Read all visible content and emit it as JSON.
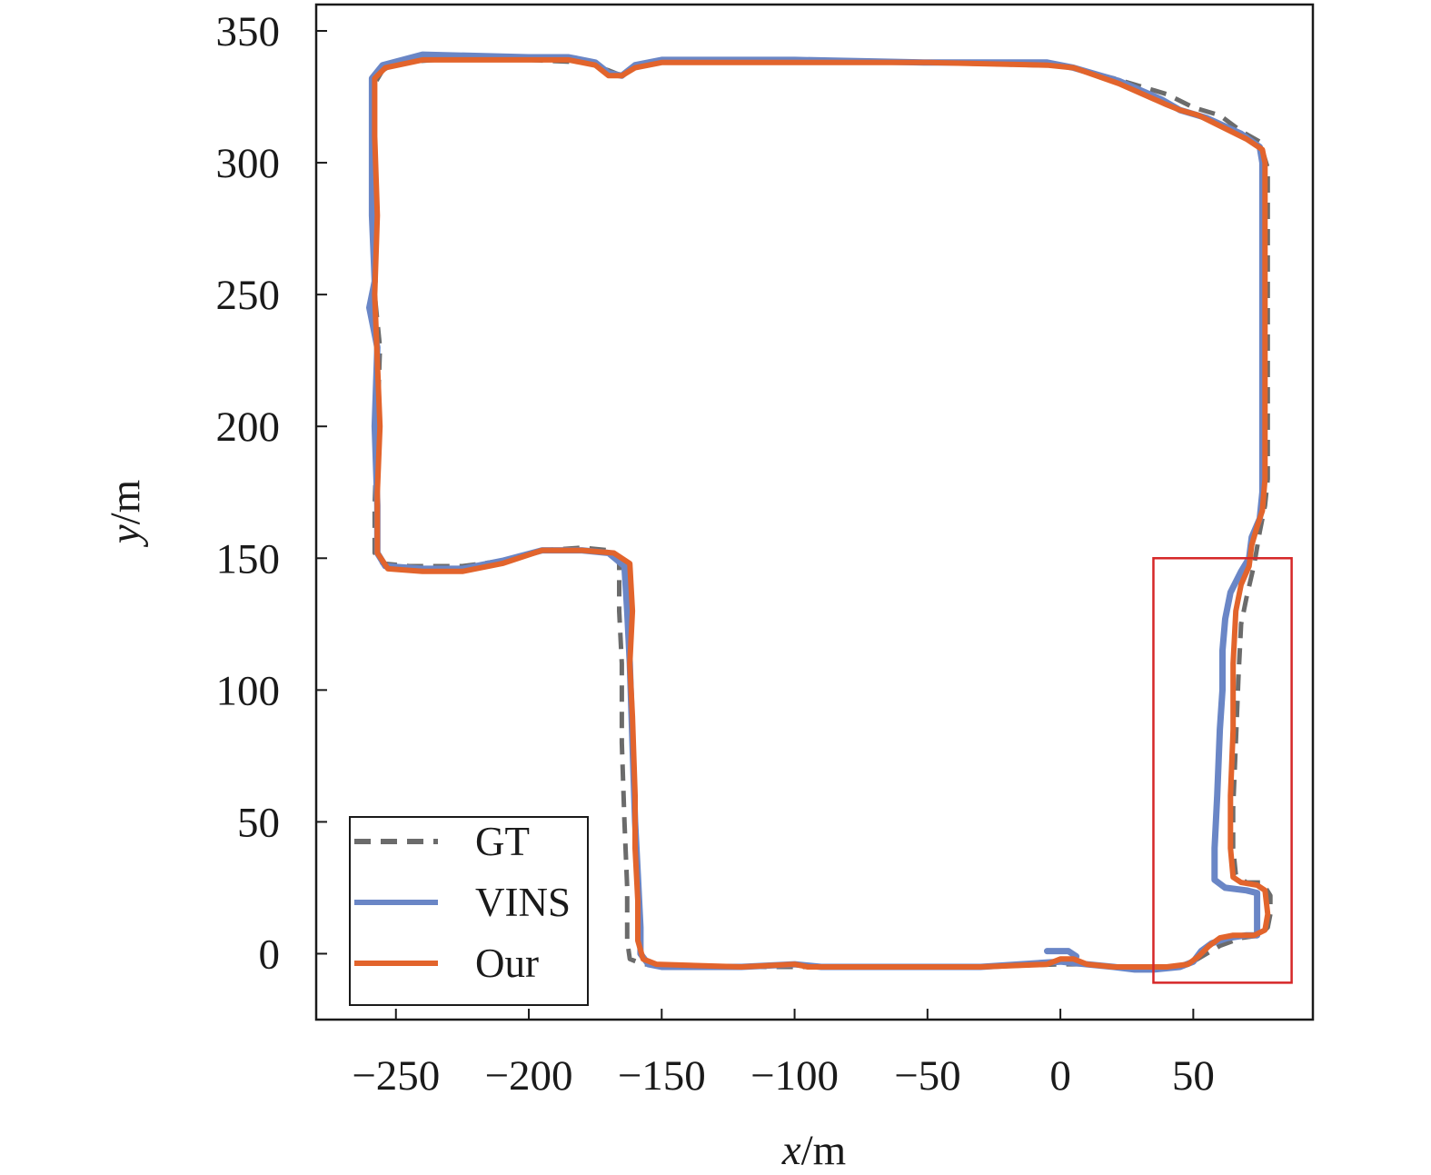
{
  "chart_data": {
    "type": "line",
    "title": "",
    "xlabel_var": "x",
    "xlabel_unit": "/m",
    "ylabel_var": "y",
    "ylabel_unit": "/m",
    "xlim": [
      -280,
      95
    ],
    "ylim": [
      -25,
      360
    ],
    "xticks": [
      -250,
      -200,
      -150,
      -100,
      -50,
      0,
      50
    ],
    "yticks": [
      0,
      50,
      100,
      150,
      200,
      250,
      300,
      350
    ],
    "xtick_labels": [
      "−250",
      "−200",
      "−150",
      "−100",
      "−50",
      "0",
      "50"
    ],
    "ytick_labels": [
      "0",
      "50",
      "100",
      "150",
      "200",
      "250",
      "300",
      "350"
    ],
    "grid": false,
    "legend_position": "lower-left",
    "highlight_box": {
      "x": [
        35,
        87
      ],
      "y": [
        -11,
        150
      ],
      "color": "#d62728"
    },
    "series": [
      {
        "name": "GT",
        "color": "#6b6b6b",
        "style": "dashed",
        "points": [
          [
            38,
            -6
          ],
          [
            30,
            -5
          ],
          [
            20,
            -5
          ],
          [
            10,
            -4
          ],
          [
            0,
            -4
          ],
          [
            -30,
            -5
          ],
          [
            -60,
            -5
          ],
          [
            -100,
            -5
          ],
          [
            -130,
            -5
          ],
          [
            -157,
            -4
          ],
          [
            -162,
            -2
          ],
          [
            -163,
            5
          ],
          [
            -163,
            25
          ],
          [
            -164,
            50
          ],
          [
            -165,
            80
          ],
          [
            -165,
            110
          ],
          [
            -166,
            130
          ],
          [
            -166,
            148
          ],
          [
            -170,
            153
          ],
          [
            -180,
            154
          ],
          [
            -195,
            153
          ],
          [
            -210,
            149
          ],
          [
            -225,
            147
          ],
          [
            -245,
            147
          ],
          [
            -255,
            148
          ],
          [
            -258,
            152
          ],
          [
            -258,
            170
          ],
          [
            -257,
            200
          ],
          [
            -256,
            230
          ],
          [
            -258,
            250
          ],
          [
            -258,
            280
          ],
          [
            -258,
            310
          ],
          [
            -258,
            330
          ],
          [
            -255,
            335
          ],
          [
            -250,
            338
          ],
          [
            -235,
            339
          ],
          [
            -200,
            339
          ],
          [
            -178,
            338
          ],
          [
            -170,
            335
          ],
          [
            -165,
            333
          ],
          [
            -160,
            336
          ],
          [
            -150,
            338
          ],
          [
            -100,
            338
          ],
          [
            -50,
            338
          ],
          [
            -10,
            337
          ],
          [
            0,
            337
          ],
          [
            20,
            332
          ],
          [
            40,
            326
          ],
          [
            50,
            321
          ],
          [
            60,
            318
          ],
          [
            68,
            312
          ],
          [
            75,
            308
          ],
          [
            78,
            298
          ],
          [
            78,
            250
          ],
          [
            78,
            200
          ],
          [
            78,
            180
          ],
          [
            77,
            170
          ],
          [
            75,
            160
          ],
          [
            73,
            148
          ],
          [
            70,
            135
          ],
          [
            68,
            125
          ],
          [
            67,
            105
          ],
          [
            66,
            80
          ],
          [
            65,
            55
          ],
          [
            65,
            40
          ],
          [
            66,
            30
          ],
          [
            70,
            27
          ],
          [
            76,
            27
          ],
          [
            79,
            22
          ],
          [
            79,
            15
          ],
          [
            78,
            10
          ],
          [
            75,
            7
          ],
          [
            68,
            6
          ],
          [
            60,
            3
          ],
          [
            55,
            0
          ],
          [
            50,
            -3
          ],
          [
            45,
            -5
          ],
          [
            38,
            -6
          ]
        ]
      },
      {
        "name": "VINS",
        "color": "#6a86c6",
        "style": "solid",
        "points": [
          [
            -5,
            1
          ],
          [
            3,
            1
          ],
          [
            6,
            -1
          ],
          [
            3,
            -3
          ],
          [
            0,
            -3
          ],
          [
            10,
            -4
          ],
          [
            20,
            -5
          ],
          [
            28,
            -6
          ],
          [
            35,
            -6
          ],
          [
            45,
            -5
          ],
          [
            50,
            -3
          ],
          [
            53,
            1
          ],
          [
            57,
            4
          ],
          [
            63,
            6
          ],
          [
            70,
            7
          ],
          [
            74,
            7
          ],
          [
            74,
            15
          ],
          [
            74,
            23
          ],
          [
            70,
            24
          ],
          [
            62,
            25
          ],
          [
            58,
            28
          ],
          [
            58,
            40
          ],
          [
            59,
            60
          ],
          [
            60,
            85
          ],
          [
            61,
            100
          ],
          [
            61,
            115
          ],
          [
            62,
            127
          ],
          [
            64,
            137
          ],
          [
            68,
            145
          ],
          [
            71,
            150
          ],
          [
            72,
            158
          ],
          [
            75,
            165
          ],
          [
            76,
            175
          ],
          [
            76,
            200
          ],
          [
            76,
            250
          ],
          [
            76,
            300
          ],
          [
            75,
            306
          ],
          [
            68,
            311
          ],
          [
            55,
            317
          ],
          [
            45,
            320
          ],
          [
            38,
            324
          ],
          [
            22,
            331
          ],
          [
            5,
            336
          ],
          [
            -5,
            338
          ],
          [
            -50,
            338
          ],
          [
            -100,
            339
          ],
          [
            -150,
            339
          ],
          [
            -160,
            337
          ],
          [
            -165,
            333
          ],
          [
            -170,
            334
          ],
          [
            -175,
            338
          ],
          [
            -185,
            340
          ],
          [
            -200,
            340
          ],
          [
            -240,
            341
          ],
          [
            -255,
            337
          ],
          [
            -259,
            332
          ],
          [
            -259,
            310
          ],
          [
            -259,
            280
          ],
          [
            -258,
            255
          ],
          [
            -260,
            245
          ],
          [
            -257,
            230
          ],
          [
            -258,
            200
          ],
          [
            -257,
            170
          ],
          [
            -257,
            152
          ],
          [
            -254,
            147
          ],
          [
            -240,
            146
          ],
          [
            -225,
            146
          ],
          [
            -210,
            149
          ],
          [
            -195,
            153
          ],
          [
            -180,
            153
          ],
          [
            -170,
            152
          ],
          [
            -164,
            147
          ],
          [
            -163,
            130
          ],
          [
            -162,
            110
          ],
          [
            -161,
            80
          ],
          [
            -160,
            50
          ],
          [
            -159,
            30
          ],
          [
            -158,
            10
          ],
          [
            -158,
            0
          ],
          [
            -155,
            -4
          ],
          [
            -150,
            -5
          ],
          [
            -120,
            -5
          ],
          [
            -100,
            -4
          ],
          [
            -90,
            -5
          ],
          [
            -60,
            -5
          ],
          [
            -30,
            -5
          ],
          [
            0,
            -3
          ]
        ]
      },
      {
        "name": "Our",
        "color": "#e2642c",
        "style": "solid",
        "points": [
          [
            0,
            -2
          ],
          [
            5,
            -2
          ],
          [
            10,
            -4
          ],
          [
            20,
            -5
          ],
          [
            30,
            -5
          ],
          [
            40,
            -5
          ],
          [
            48,
            -4
          ],
          [
            52,
            -1
          ],
          [
            56,
            3
          ],
          [
            60,
            6
          ],
          [
            65,
            7
          ],
          [
            73,
            7
          ],
          [
            77,
            9
          ],
          [
            78,
            15
          ],
          [
            77,
            24
          ],
          [
            74,
            26
          ],
          [
            68,
            27
          ],
          [
            65,
            29
          ],
          [
            64,
            40
          ],
          [
            64,
            60
          ],
          [
            65,
            85
          ],
          [
            65,
            110
          ],
          [
            66,
            130
          ],
          [
            68,
            140
          ],
          [
            71,
            147
          ],
          [
            72,
            155
          ],
          [
            74,
            162
          ],
          [
            76,
            168
          ],
          [
            77,
            180
          ],
          [
            77,
            210
          ],
          [
            77,
            250
          ],
          [
            77,
            280
          ],
          [
            77,
            300
          ],
          [
            76,
            305
          ],
          [
            70,
            309
          ],
          [
            60,
            314
          ],
          [
            52,
            318
          ],
          [
            45,
            320
          ],
          [
            40,
            322
          ],
          [
            22,
            330
          ],
          [
            5,
            336
          ],
          [
            -5,
            337
          ],
          [
            -50,
            338
          ],
          [
            -100,
            338
          ],
          [
            -150,
            338
          ],
          [
            -160,
            336
          ],
          [
            -165,
            333
          ],
          [
            -170,
            333
          ],
          [
            -175,
            337
          ],
          [
            -185,
            339
          ],
          [
            -200,
            339
          ],
          [
            -240,
            339
          ],
          [
            -254,
            336
          ],
          [
            -258,
            332
          ],
          [
            -258,
            310
          ],
          [
            -257,
            280
          ],
          [
            -258,
            250
          ],
          [
            -257,
            225
          ],
          [
            -256,
            200
          ],
          [
            -257,
            175
          ],
          [
            -257,
            152
          ],
          [
            -253,
            146
          ],
          [
            -240,
            145
          ],
          [
            -225,
            145
          ],
          [
            -210,
            148
          ],
          [
            -195,
            153
          ],
          [
            -180,
            153
          ],
          [
            -168,
            152
          ],
          [
            -162,
            148
          ],
          [
            -161,
            130
          ],
          [
            -162,
            110
          ],
          [
            -161,
            90
          ],
          [
            -160,
            60
          ],
          [
            -160,
            40
          ],
          [
            -159,
            20
          ],
          [
            -159,
            5
          ],
          [
            -157,
            -2
          ],
          [
            -152,
            -4
          ],
          [
            -120,
            -5
          ],
          [
            -100,
            -4
          ],
          [
            -95,
            -5
          ],
          [
            -60,
            -5
          ],
          [
            -30,
            -5
          ],
          [
            -5,
            -4
          ],
          [
            0,
            -2
          ]
        ]
      }
    ]
  }
}
